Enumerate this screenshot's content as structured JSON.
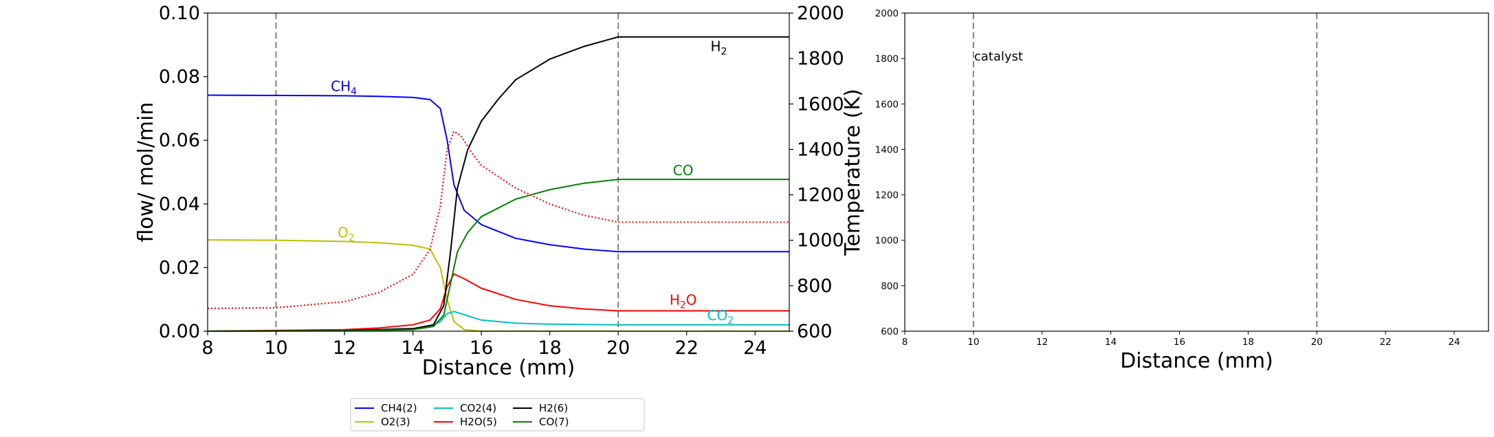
{
  "chart_data": [
    {
      "type": "line",
      "xlabel": "Distance (mm)",
      "ylabel": "flow/ mol/min",
      "ylabel_right": "Temperature (K)",
      "xlim": [
        8,
        25
      ],
      "ylim": [
        0.0,
        0.1
      ],
      "ylim_right": [
        600,
        2000
      ],
      "xticks": [
        "8",
        "10",
        "12",
        "14",
        "16",
        "18",
        "20",
        "22",
        "24"
      ],
      "yticks": [
        "0.00",
        "0.02",
        "0.04",
        "0.06",
        "0.08",
        "0.10"
      ],
      "yticks_right": [
        "600",
        "800",
        "1000",
        "1200",
        "1400",
        "1600",
        "1800",
        "2000"
      ],
      "catalyst_bounds": [
        10,
        20
      ],
      "grid": false,
      "legend_placement": "below plot",
      "series": [
        {
          "name": "CH4(2)",
          "label": "CH4",
          "color": "#0000ff",
          "style": "solid",
          "x": [
            8,
            10,
            12,
            13,
            14,
            14.5,
            14.8,
            15,
            15.2,
            15.5,
            16,
            17,
            18,
            19,
            20,
            22,
            25
          ],
          "values": [
            0.0742,
            0.0741,
            0.074,
            0.0738,
            0.0735,
            0.0728,
            0.07,
            0.06,
            0.046,
            0.038,
            0.0335,
            0.0292,
            0.0272,
            0.0258,
            0.025,
            0.025,
            0.025
          ]
        },
        {
          "name": "O2(3)",
          "label": "O2",
          "color": "#bfbf00",
          "style": "solid",
          "x": [
            8,
            10,
            12,
            13,
            14,
            14.5,
            14.8,
            15,
            15.2,
            15.5,
            16,
            25
          ],
          "values": [
            0.0287,
            0.0286,
            0.0282,
            0.0278,
            0.027,
            0.0258,
            0.02,
            0.01,
            0.003,
            0.0005,
            0.0,
            0.0
          ]
        },
        {
          "name": "CO2(4)",
          "label": "CO2",
          "color": "#00bfbf",
          "style": "solid",
          "x": [
            8,
            12,
            14,
            14.5,
            14.8,
            15,
            15.2,
            15.5,
            16,
            17,
            18,
            20,
            25
          ],
          "values": [
            0.0,
            0.0002,
            0.0008,
            0.0015,
            0.003,
            0.0055,
            0.0062,
            0.0052,
            0.0035,
            0.0025,
            0.0022,
            0.002,
            0.002
          ]
        },
        {
          "name": "H2O(5)",
          "label": "H2O",
          "color": "#ff0000",
          "style": "solid",
          "x": [
            8,
            12,
            13,
            14,
            14.5,
            14.8,
            15,
            15.2,
            15.5,
            16,
            17,
            18,
            19,
            20,
            25
          ],
          "values": [
            0.0,
            0.0005,
            0.001,
            0.002,
            0.0035,
            0.007,
            0.014,
            0.018,
            0.0165,
            0.0135,
            0.01,
            0.008,
            0.007,
            0.0064,
            0.0064
          ]
        },
        {
          "name": "H2(6)",
          "label": "H2",
          "color": "#000000",
          "style": "solid",
          "x": [
            8,
            12,
            14,
            14.6,
            14.9,
            15.1,
            15.3,
            15.6,
            16,
            16.5,
            17,
            18,
            19,
            20,
            25
          ],
          "values": [
            0.0,
            0.0002,
            0.0008,
            0.002,
            0.008,
            0.025,
            0.045,
            0.057,
            0.066,
            0.073,
            0.079,
            0.0855,
            0.0895,
            0.0925,
            0.0925
          ]
        },
        {
          "name": "CO(7)",
          "label": "CO",
          "color": "#008000",
          "style": "solid",
          "x": [
            8,
            12,
            14,
            14.6,
            14.9,
            15.1,
            15.3,
            15.6,
            16,
            17,
            18,
            19,
            20,
            25
          ],
          "values": [
            0.0,
            0.0001,
            0.0005,
            0.0015,
            0.005,
            0.015,
            0.025,
            0.031,
            0.036,
            0.0415,
            0.0445,
            0.0465,
            0.0477,
            0.0477
          ]
        },
        {
          "name": "T",
          "color": "#ff0000",
          "style": "dotted",
          "axis": "right",
          "x": [
            8,
            10,
            12,
            13,
            14,
            14.5,
            14.8,
            15,
            15.2,
            15.4,
            15.7,
            16,
            17,
            18,
            19,
            20,
            22,
            25
          ],
          "values": [
            700,
            703,
            730,
            770,
            850,
            960,
            1150,
            1400,
            1480,
            1460,
            1390,
            1330,
            1230,
            1160,
            1110,
            1080,
            1080,
            1080
          ]
        }
      ],
      "annotations": [
        {
          "base": "CH",
          "sub": "4",
          "x": 11.6,
          "y": 0.0755,
          "color": "#0000ff"
        },
        {
          "base": "O",
          "sub": "2",
          "x": 11.8,
          "y": 0.0295,
          "color": "#bfbf00"
        },
        {
          "base": "H",
          "sub": "2",
          "x": 22.7,
          "y": 0.088,
          "color": "#000000"
        },
        {
          "base": "CO",
          "sub": "",
          "x": 21.6,
          "y": 0.049,
          "color": "#008000"
        },
        {
          "base": "H",
          "sub": "2",
          "tail": "O",
          "x": 21.5,
          "y": 0.0083,
          "color": "#ff0000"
        },
        {
          "base": "CO",
          "sub": "2",
          "x": 22.6,
          "y": 0.0035,
          "color": "#00bfbf"
        }
      ]
    },
    {
      "type": "line",
      "xlabel": "Distance (mm)",
      "ylabel": "",
      "xlim": [
        8,
        25
      ],
      "ylim": [
        600,
        2000
      ],
      "xticks": [
        "8",
        "10",
        "12",
        "14",
        "16",
        "18",
        "20",
        "22",
        "24"
      ],
      "yticks": [
        "600",
        "800",
        "1000",
        "1200",
        "1400",
        "1600",
        "1800",
        "2000"
      ],
      "catalyst_bounds": [
        10,
        20
      ],
      "annotation_text": "catalyst",
      "annotation_at": {
        "x": 10.0,
        "y": 1810
      },
      "series": []
    }
  ]
}
